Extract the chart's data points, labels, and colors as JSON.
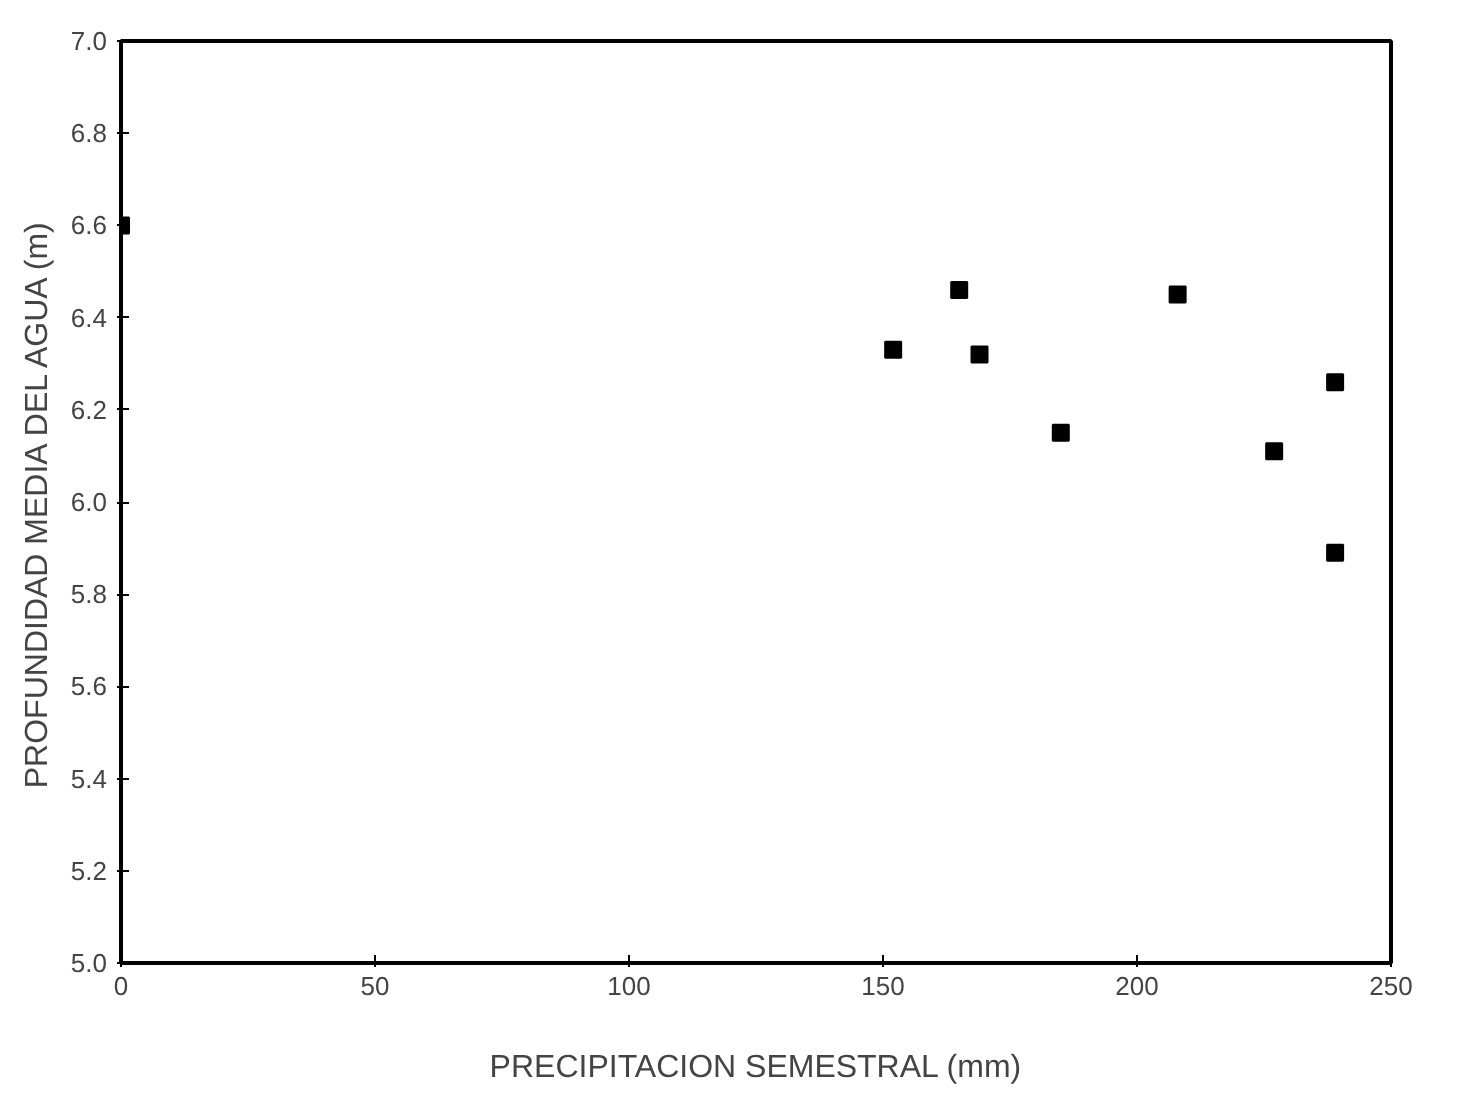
{
  "chart_data": {
    "type": "scatter",
    "xlabel": "PRECIPITACION SEMESTRAL (mm)",
    "ylabel": "PROFUNDIDAD MEDIA DEL AGUA (m)",
    "x": [
      0,
      152,
      165,
      169,
      185,
      208,
      227,
      239,
      239
    ],
    "values": [
      6.6,
      6.33,
      6.46,
      6.32,
      6.15,
      6.45,
      6.11,
      6.26,
      5.89
    ],
    "color": "#000000",
    "marker": "square",
    "xlim": [
      0,
      250
    ],
    "ylim": [
      5.0,
      7.0
    ],
    "xticks": [
      0,
      50,
      100,
      150,
      200,
      250
    ],
    "yticks": [
      {
        "value": 5.0,
        "label": "5.0"
      },
      {
        "value": 5.2,
        "label": "5.2"
      },
      {
        "value": 5.4,
        "label": "5.4"
      },
      {
        "value": 5.6,
        "label": "5.6"
      },
      {
        "value": 5.8,
        "label": "5.8"
      },
      {
        "value": 6.0,
        "label": "6.0"
      },
      {
        "value": 6.2,
        "label": "6.2"
      },
      {
        "value": 6.4,
        "label": "6.4"
      },
      {
        "value": 6.6,
        "label": "6.6"
      },
      {
        "value": 6.8,
        "label": "6.8"
      },
      {
        "value": 7.0,
        "label": "7.0"
      }
    ],
    "grid": false
  }
}
